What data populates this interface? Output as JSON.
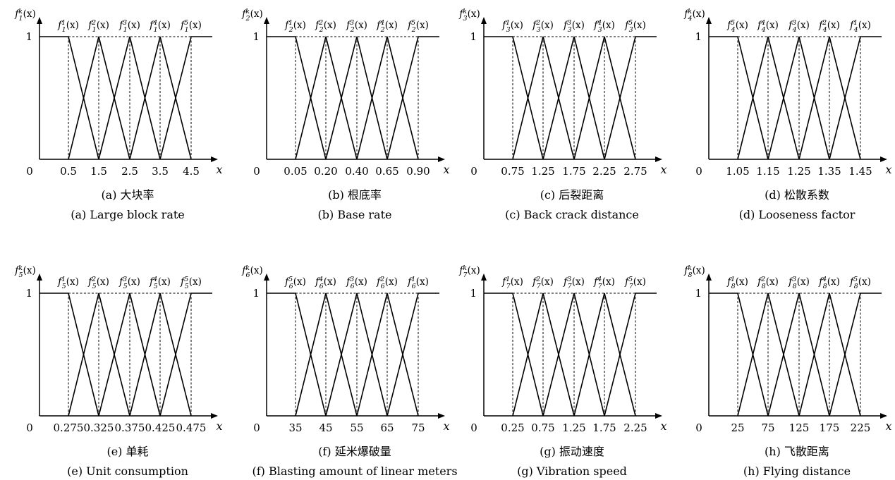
{
  "chart_data": [
    {
      "type": "line",
      "x_ticks": [
        "0.5",
        "1.5",
        "2.5",
        "3.5",
        "4.5"
      ],
      "x": [
        0.5,
        1.5,
        2.5,
        3.5,
        4.5
      ],
      "origin_label": "0",
      "xlabel": "x",
      "ylabel": "f_1^k(x)",
      "ytick": "1",
      "function_labels": [
        "f_1^1(x)",
        "f_1^2(x)",
        "f_1^3(x)",
        "f_1^4(x)",
        "f_1^5(x)"
      ],
      "caption_cn": "(a) 大块率",
      "caption_en": "(a) Large block rate"
    },
    {
      "type": "line",
      "x_ticks": [
        "0.05",
        "0.20",
        "0.40",
        "0.65",
        "0.90"
      ],
      "x": [
        0.05,
        0.2,
        0.4,
        0.65,
        0.9
      ],
      "origin_label": "0",
      "xlabel": "x",
      "ylabel": "f_2^k(x)",
      "ytick": "1",
      "function_labels": [
        "f_2^1(x)",
        "f_2^2(x)",
        "f_2^3(x)",
        "f_2^4(x)",
        "f_2^5(x)"
      ],
      "caption_cn": "(b) 根底率",
      "caption_en": "(b) Base rate"
    },
    {
      "type": "line",
      "x_ticks": [
        "0.75",
        "1.25",
        "1.75",
        "2.25",
        "2.75"
      ],
      "x": [
        0.75,
        1.25,
        1.75,
        2.25,
        2.75
      ],
      "origin_label": "0",
      "xlabel": "x",
      "ylabel": "f_3^k(x)",
      "ytick": "1",
      "function_labels": [
        "f_3^1(x)",
        "f_3^2(x)",
        "f_3^3(x)",
        "f_3^4(x)",
        "f_3^5(x)"
      ],
      "caption_cn": "(c) 后裂距离",
      "caption_en": "(c) Back crack distance"
    },
    {
      "type": "line",
      "x_ticks": [
        "1.05",
        "1.15",
        "1.25",
        "1.35",
        "1.45"
      ],
      "x": [
        1.05,
        1.15,
        1.25,
        1.35,
        1.45
      ],
      "origin_label": "0",
      "xlabel": "x",
      "ylabel": "f_4^k(x)",
      "ytick": "1",
      "function_labels": [
        "f_4^5(x)",
        "f_4^4(x)",
        "f_4^3(x)",
        "f_4^2(x)",
        "f_4^1(x)"
      ],
      "caption_cn": "(d) 松散系数",
      "caption_en": "(d) Looseness factor"
    },
    {
      "type": "line",
      "x_ticks": [
        "0.275",
        "0.325",
        "0.375",
        "0.425",
        "0.475"
      ],
      "x": [
        0.275,
        0.325,
        0.375,
        0.425,
        0.475
      ],
      "origin_label": "0",
      "xlabel": "x",
      "ylabel": "f_5^k(x)",
      "ytick": "1",
      "function_labels": [
        "f_5^1(x)",
        "f_5^2(x)",
        "f_5^3(x)",
        "f_5^4(x)",
        "f_5^5(x)"
      ],
      "caption_cn": "(e) 单耗",
      "caption_en": "(e) Unit consumption"
    },
    {
      "type": "line",
      "x_ticks": [
        "35",
        "45",
        "55",
        "65",
        "75"
      ],
      "x": [
        35,
        45,
        55,
        65,
        75
      ],
      "origin_label": "0",
      "xlabel": "x",
      "ylabel": "f_6^k(x)",
      "ytick": "1",
      "function_labels": [
        "f_6^5(x)",
        "f_6^4(x)",
        "f_6^3(x)",
        "f_6^2(x)",
        "f_6^1(x)"
      ],
      "caption_cn": "(f) 延米爆破量",
      "caption_en": "(f) Blasting amount of linear meters"
    },
    {
      "type": "line",
      "x_ticks": [
        "0.25",
        "0.75",
        "1.25",
        "1.75",
        "2.25"
      ],
      "x": [
        0.25,
        0.75,
        1.25,
        1.75,
        2.25
      ],
      "origin_label": "0",
      "xlabel": "x",
      "ylabel": "f_7^k(x)",
      "ytick": "1",
      "function_labels": [
        "f_7^1(x)",
        "f_7^2(x)",
        "f_7^3(x)",
        "f_7^4(x)",
        "f_7^5(x)"
      ],
      "caption_cn": "(g) 振动速度",
      "caption_en": "(g) Vibration speed"
    },
    {
      "type": "line",
      "x_ticks": [
        "25",
        "75",
        "125",
        "175",
        "225"
      ],
      "x": [
        25,
        75,
        125,
        175,
        225
      ],
      "origin_label": "0",
      "xlabel": "x",
      "ylabel": "f_8^k(x)",
      "ytick": "1",
      "function_labels": [
        "f_8^1(x)",
        "f_8^2(x)",
        "f_8^3(x)",
        "f_8^4(x)",
        "f_8^5(x)"
      ],
      "caption_cn": "(h) 飞散距离",
      "caption_en": "(h) Flying distance"
    }
  ]
}
